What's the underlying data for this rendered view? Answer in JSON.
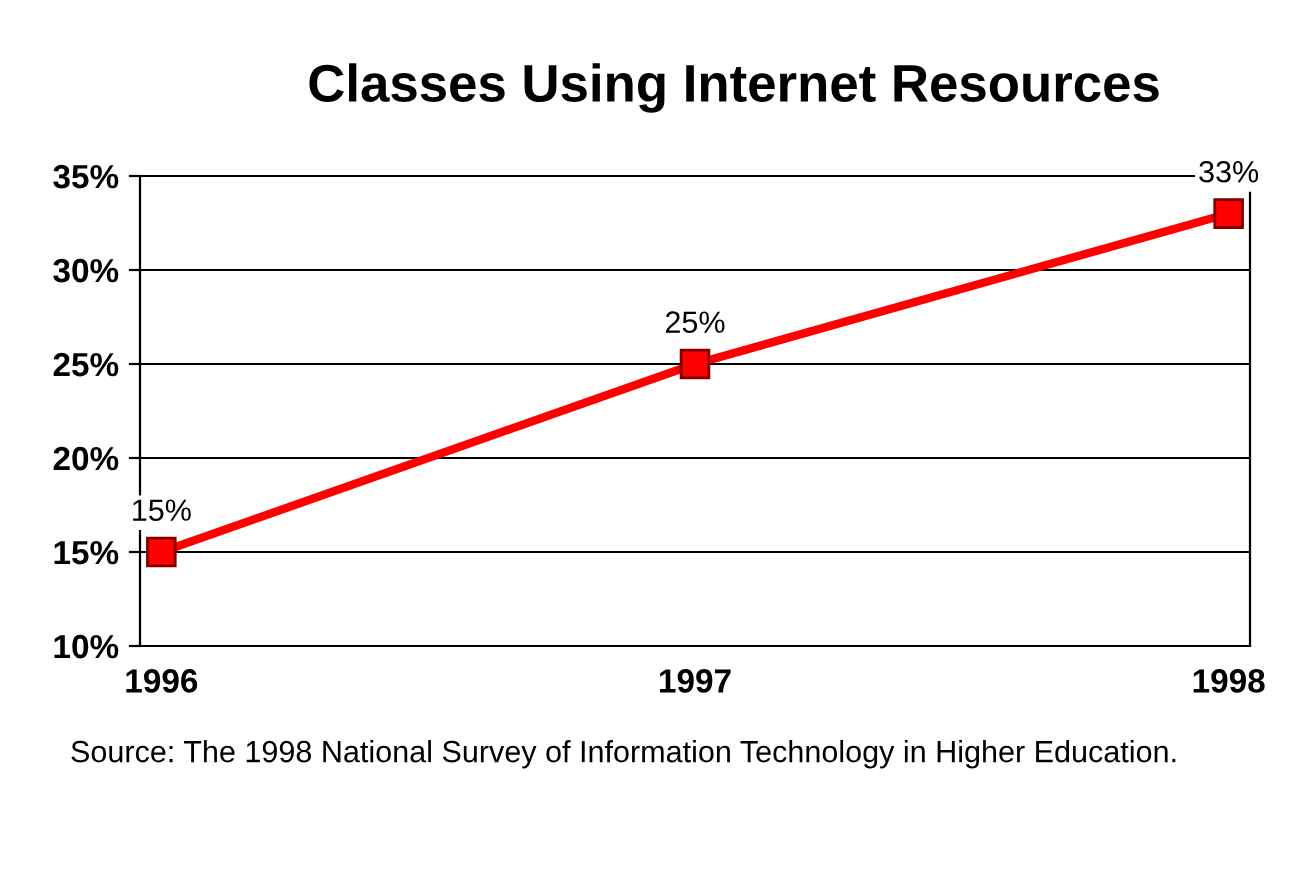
{
  "chart_data": {
    "type": "line",
    "title": "Classes Using Internet Resources",
    "categories": [
      "1996",
      "1997",
      "1998"
    ],
    "series": [
      {
        "color": "#ff0000",
        "values": [
          15,
          25,
          33
        ],
        "value_labels": [
          "15%",
          "25%",
          "33%"
        ]
      }
    ],
    "ylim": [
      10,
      35
    ],
    "yticks": [
      {
        "value": 10,
        "label": "10%"
      },
      {
        "value": 15,
        "label": "15%"
      },
      {
        "value": 20,
        "label": "20%"
      },
      {
        "value": 25,
        "label": "25%"
      },
      {
        "value": 30,
        "label": "30%"
      },
      {
        "value": 35,
        "label": "35%"
      }
    ],
    "grid": "y",
    "marker": "square",
    "line_style": "solid",
    "annotations": [
      "Source: The 1998 National Survey of Information Technology in Higher Education."
    ]
  }
}
